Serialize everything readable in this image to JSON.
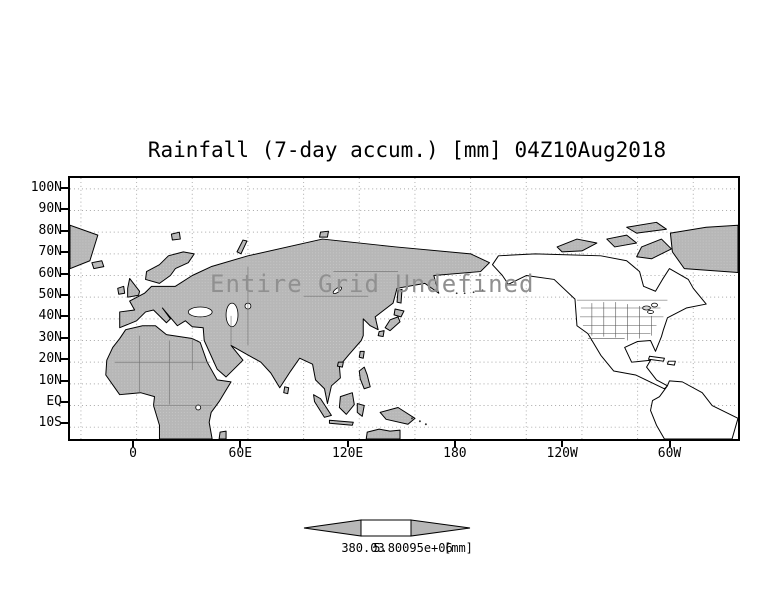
{
  "title": "Rainfall (7-day accum.) [mm] 04Z10Aug2018",
  "map": {
    "overlay_text": "Entire Grid Undefined"
  },
  "axes": {
    "y_ticks": [
      "100N",
      "90N",
      "80N",
      "70N",
      "60N",
      "50N",
      "40N",
      "30N",
      "20N",
      "10N",
      "EQ",
      "10S"
    ],
    "x_ticks": [
      "0",
      "60E",
      "120E",
      "180",
      "120W",
      "60W"
    ]
  },
  "colorbar": {
    "min_label": "380.03",
    "max_label": "5.80095e+06",
    "unit": "[mm]"
  },
  "colors": {
    "land": "#b7b7b7",
    "land_dot": "#cfcfcf",
    "overlay_text": "#909090",
    "coastline": "#000000",
    "grid": "#a8a8a8"
  },
  "chart_data": {
    "type": "heatmap",
    "title": "Rainfall (7-day accum.) [mm] 04Z10Aug2018",
    "variable": "Rainfall (7-day accumulation)",
    "unit": "mm",
    "valid_time": "04Z10Aug2018",
    "projection": "lat-lon world map",
    "x_tick_labels": [
      "0",
      "60E",
      "120E",
      "180",
      "120W",
      "60W"
    ],
    "y_tick_labels": [
      "100N",
      "90N",
      "80N",
      "70N",
      "60N",
      "50N",
      "40N",
      "30N",
      "20N",
      "10N",
      "EQ",
      "10S"
    ],
    "x_range_deg": [
      -36,
      324
    ],
    "y_range_deg": [
      -16,
      105
    ],
    "grid": "dotted lat-lon graticule",
    "values": null,
    "annotations": [
      "Entire Grid Undefined"
    ],
    "colorbar": {
      "levels": [
        380.03,
        5800950
      ],
      "level_labels": [
        "380.03",
        "5.80095e+06"
      ],
      "unit_label": "[mm]",
      "style": "horizontal bar with under/over arrows",
      "position": "bottom center"
    }
  }
}
